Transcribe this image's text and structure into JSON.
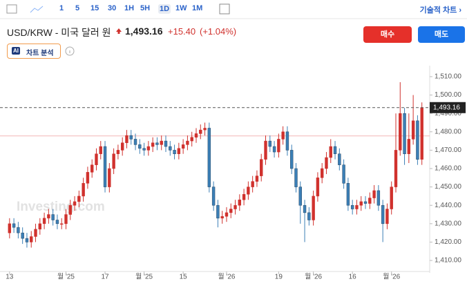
{
  "toolbar": {
    "intervals": [
      "1",
      "5",
      "15",
      "30",
      "1H",
      "5H",
      "1D",
      "1W",
      "1M"
    ],
    "selected": "1D",
    "technical": "기술적 차트 ›"
  },
  "header": {
    "symbol": "USD/KRW - 미국 달러 원",
    "price": "1,493.16",
    "change": "+15.40",
    "percent": "(+1.04%)",
    "buy": "매수",
    "sell": "매도",
    "ai_logo": "AI",
    "ai_label": "차트 분석",
    "watermark": "Investing.com"
  },
  "chart_data": {
    "type": "candlestick",
    "up_color": "#d0312d",
    "down_color": "#3b7fb6",
    "reference_line": 1477.76,
    "reference_color": "#f4b6b6",
    "open": [
      1425,
      1430,
      1428,
      1425,
      1422,
      1420,
      1423,
      1427,
      1430,
      1433,
      1435,
      1432,
      1430,
      1430,
      1435,
      1440,
      1442,
      1445,
      1452,
      1458,
      1462,
      1468,
      1472,
      1450,
      1460,
      1468,
      1470,
      1474,
      1478,
      1476,
      1473,
      1471,
      1470,
      1472,
      1474,
      1473,
      1475,
      1472,
      1470,
      1468,
      1471,
      1473,
      1475,
      1477,
      1479,
      1481,
      1482,
      1450,
      1440,
      1433,
      1434,
      1436,
      1438,
      1440,
      1443,
      1446,
      1450,
      1453,
      1456,
      1465,
      1475,
      1472,
      1469,
      1476,
      1480,
      1470,
      1460,
      1450,
      1440,
      1436,
      1432,
      1445,
      1455,
      1460,
      1466,
      1472,
      1468,
      1462,
      1452,
      1440,
      1438,
      1440,
      1442,
      1441,
      1444,
      1448,
      1440,
      1430,
      1438,
      1450,
      1470,
      1490,
      1468,
      1476,
      1486,
      1465
    ],
    "high": [
      1433,
      1433,
      1431,
      1428,
      1425,
      1426,
      1430,
      1433,
      1436,
      1438,
      1438,
      1435,
      1433,
      1438,
      1443,
      1445,
      1448,
      1455,
      1461,
      1465,
      1471,
      1475,
      1475,
      1463,
      1471,
      1473,
      1477,
      1481,
      1481,
      1479,
      1476,
      1474,
      1475,
      1477,
      1477,
      1478,
      1478,
      1475,
      1473,
      1474,
      1476,
      1478,
      1480,
      1482,
      1484,
      1485,
      1485,
      1453,
      1443,
      1437,
      1439,
      1441,
      1443,
      1446,
      1449,
      1453,
      1456,
      1459,
      1468,
      1478,
      1478,
      1475,
      1479,
      1483,
      1483,
      1473,
      1463,
      1453,
      1443,
      1439,
      1448,
      1458,
      1463,
      1469,
      1476,
      1475,
      1471,
      1465,
      1455,
      1443,
      1443,
      1445,
      1445,
      1447,
      1451,
      1451,
      1443,
      1441,
      1453,
      1490,
      1507,
      1493,
      1490,
      1500,
      1489,
      1496
    ],
    "low": [
      1422,
      1425,
      1422,
      1419,
      1417,
      1417,
      1420,
      1424,
      1427,
      1430,
      1429,
      1427,
      1427,
      1427,
      1432,
      1437,
      1439,
      1442,
      1449,
      1455,
      1459,
      1465,
      1447,
      1447,
      1457,
      1465,
      1467,
      1471,
      1473,
      1470,
      1468,
      1467,
      1467,
      1469,
      1470,
      1470,
      1469,
      1467,
      1465,
      1465,
      1468,
      1470,
      1472,
      1474,
      1476,
      1478,
      1447,
      1437,
      1428,
      1430,
      1431,
      1433,
      1435,
      1437,
      1440,
      1443,
      1447,
      1450,
      1453,
      1462,
      1469,
      1466,
      1466,
      1473,
      1467,
      1457,
      1447,
      1430,
      1420,
      1429,
      1429,
      1442,
      1452,
      1457,
      1463,
      1465,
      1459,
      1449,
      1437,
      1435,
      1435,
      1437,
      1438,
      1438,
      1441,
      1437,
      1420,
      1427,
      1435,
      1447,
      1467,
      1462,
      1463,
      1473,
      1462,
      1462
    ],
    "close": [
      1430,
      1428,
      1425,
      1422,
      1420,
      1423,
      1427,
      1430,
      1433,
      1435,
      1432,
      1430,
      1430,
      1435,
      1440,
      1442,
      1445,
      1452,
      1458,
      1462,
      1468,
      1472,
      1450,
      1460,
      1468,
      1470,
      1474,
      1478,
      1476,
      1473,
      1471,
      1470,
      1472,
      1474,
      1473,
      1475,
      1472,
      1470,
      1468,
      1471,
      1473,
      1475,
      1477,
      1479,
      1481,
      1482,
      1450,
      1440,
      1433,
      1434,
      1436,
      1438,
      1440,
      1443,
      1446,
      1450,
      1453,
      1456,
      1465,
      1475,
      1472,
      1469,
      1476,
      1480,
      1470,
      1460,
      1450,
      1440,
      1436,
      1432,
      1445,
      1455,
      1460,
      1466,
      1472,
      1468,
      1462,
      1452,
      1440,
      1438,
      1440,
      1442,
      1441,
      1444,
      1448,
      1440,
      1430,
      1438,
      1450,
      1470,
      1490,
      1468,
      1476,
      1486,
      1465,
      1493.16
    ],
    "xlim": [
      -2.2,
      96.8
    ],
    "ylim": [
      1404,
      1516
    ],
    "xticks": [
      {
        "value": 0,
        "label": "13"
      },
      {
        "value": 13,
        "label": "월 '25"
      },
      {
        "value": 22,
        "label": "17"
      },
      {
        "value": 31,
        "label": "월 '25"
      },
      {
        "value": 40,
        "label": "15"
      },
      {
        "value": 50,
        "label": "월 '26"
      },
      {
        "value": 62,
        "label": "19"
      },
      {
        "value": 70,
        "label": "월 '26"
      },
      {
        "value": 79,
        "label": "16"
      },
      {
        "value": 88,
        "label": "월 '26"
      }
    ],
    "yticks": [
      {
        "value": 1410,
        "label": "1,410.00"
      },
      {
        "value": 1420,
        "label": "1,420.00"
      },
      {
        "value": 1430,
        "label": "1,430.00"
      },
      {
        "value": 1440,
        "label": "1,440.00"
      },
      {
        "value": 1450,
        "label": "1,450.00"
      },
      {
        "value": 1460,
        "label": "1,460.00"
      },
      {
        "value": 1470,
        "label": "1,470.00"
      },
      {
        "value": 1480,
        "label": "1,480.00"
      },
      {
        "value": 1490,
        "label": "1,490.00"
      },
      {
        "value": 1500,
        "label": "1,500.00"
      },
      {
        "value": 1510,
        "label": "1,510.00"
      }
    ],
    "grid": false
  }
}
